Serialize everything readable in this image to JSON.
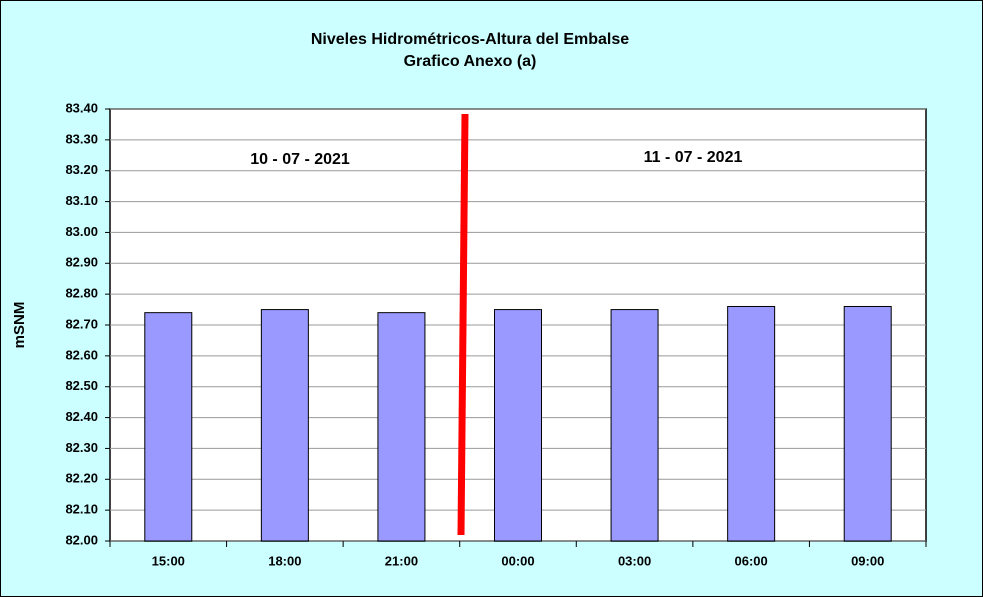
{
  "chart_data": {
    "type": "bar",
    "title": "Niveles Hidrométricos-Altura del Embalse",
    "subtitle": "Grafico Anexo (a)",
    "y_label": "mSNM",
    "annotations": [
      "10 - 07 - 2021",
      "11 - 07 - 2021"
    ],
    "categories": [
      "15:00",
      "18:00",
      "21:00",
      "00:00",
      "03:00",
      "06:00",
      "09:00"
    ],
    "values": [
      82.74,
      82.75,
      82.74,
      82.75,
      82.75,
      82.76,
      82.76
    ],
    "color": "#9999ff",
    "ylim": [
      82,
      83.4
    ],
    "yticks": [
      {
        "value": 82,
        "label": "82.00"
      },
      {
        "value": 82.1,
        "label": "82.10"
      },
      {
        "value": 82.2,
        "label": "82.20"
      },
      {
        "value": 82.3,
        "label": "82.30"
      },
      {
        "value": 82.4,
        "label": "82.40"
      },
      {
        "value": 82.5,
        "label": "82.50"
      },
      {
        "value": 82.6,
        "label": "82.60"
      },
      {
        "value": 82.7,
        "label": "82.70"
      },
      {
        "value": 82.8,
        "label": "82.80"
      },
      {
        "value": 82.9,
        "label": "82.90"
      },
      {
        "value": 83,
        "label": "83.00"
      },
      {
        "value": 83.1,
        "label": "83.10"
      },
      {
        "value": 83.2,
        "label": "83.20"
      },
      {
        "value": 83.3,
        "label": "83.30"
      },
      {
        "value": 83.4,
        "label": "83.40"
      }
    ],
    "grid": true
  }
}
